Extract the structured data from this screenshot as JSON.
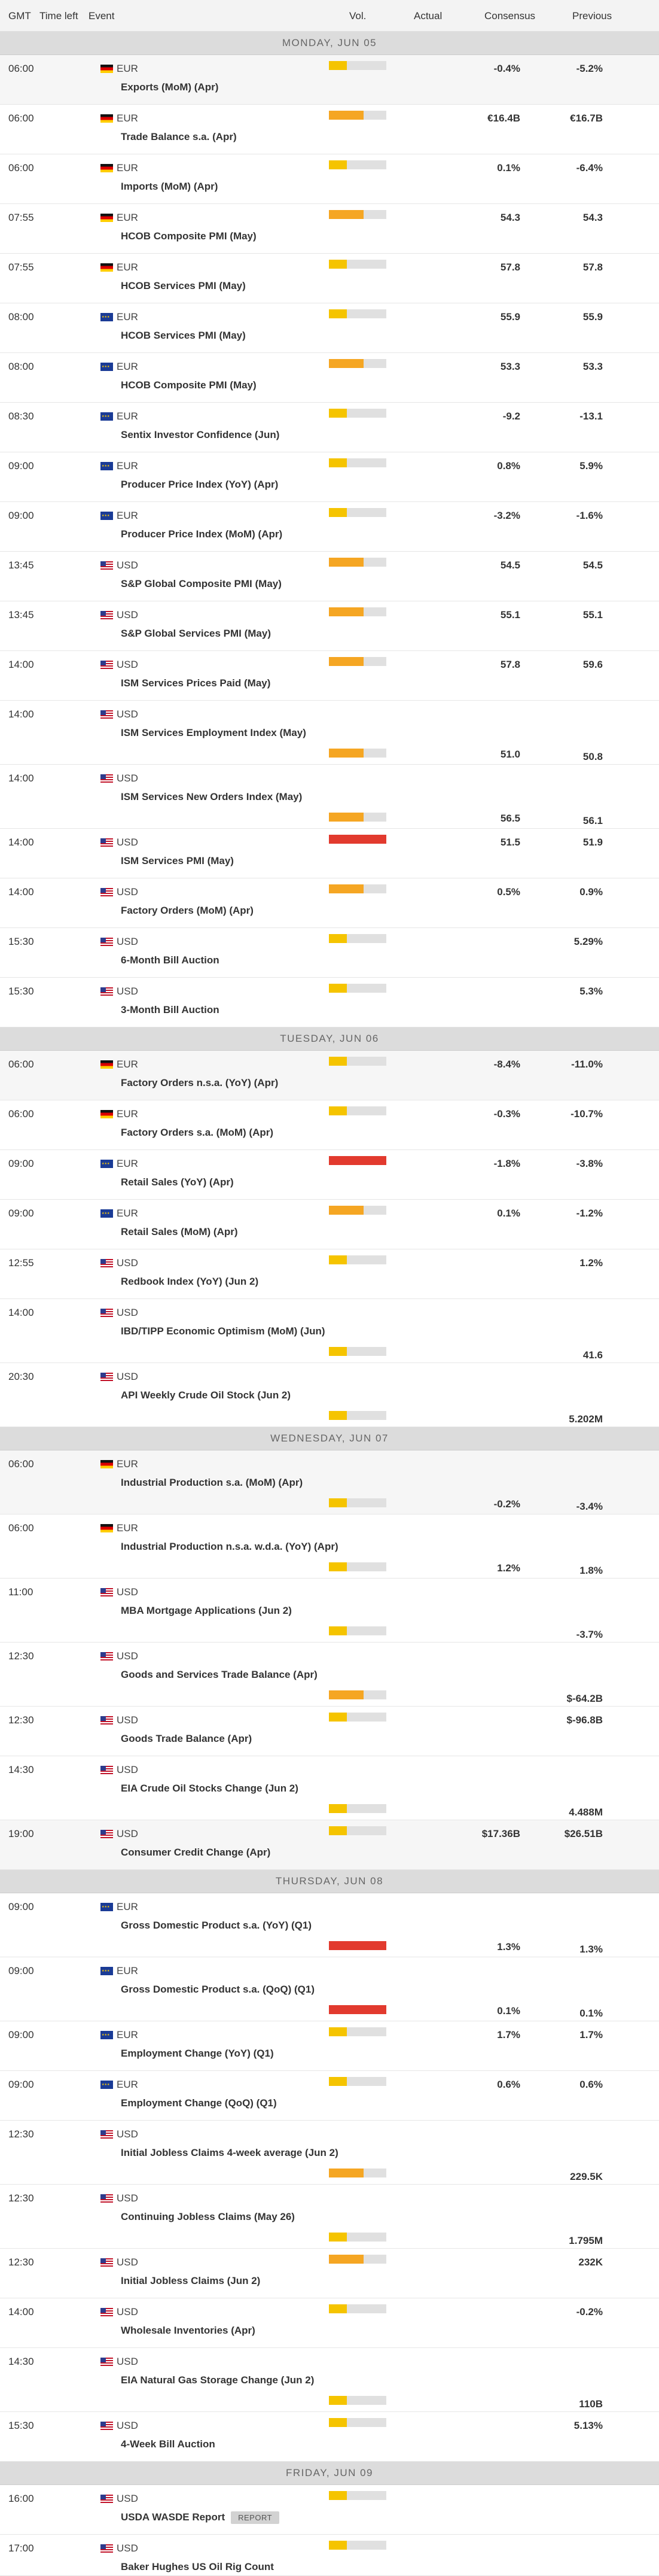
{
  "header": {
    "gmt": "GMT",
    "time_left": "Time left",
    "event": "Event",
    "vol": "Vol.",
    "actual": "Actual",
    "consensus": "Consensus",
    "previous": "Previous"
  },
  "colors": {
    "low": "#f5c400",
    "medium": "#f5a623",
    "high": "#e23a2e",
    "track": "#e0e0e0"
  },
  "days": [
    {
      "label": "MONDAY, JUN 05",
      "events": [
        {
          "time": "06:00",
          "currency": "EUR",
          "flag": "de",
          "name": "Exports (MoM) (Apr)",
          "volatility": "low",
          "actual": "",
          "consensus": "-0.4%",
          "previous": "-5.2%",
          "layout": "std",
          "h": 82,
          "alt": true
        },
        {
          "time": "06:00",
          "currency": "EUR",
          "flag": "de",
          "name": "Trade Balance s.a. (Apr)",
          "volatility": "medium",
          "actual": "",
          "consensus": "€16.4B",
          "previous": "€16.7B",
          "layout": "std",
          "h": 82
        },
        {
          "time": "06:00",
          "currency": "EUR",
          "flag": "de",
          "name": "Imports (MoM) (Apr)",
          "volatility": "low",
          "actual": "",
          "consensus": "0.1%",
          "previous": "-6.4%",
          "layout": "std",
          "h": 82
        },
        {
          "time": "07:55",
          "currency": "EUR",
          "flag": "de",
          "name": "HCOB Composite PMI (May)",
          "volatility": "medium",
          "actual": "",
          "consensus": "54.3",
          "previous": "54.3",
          "layout": "std",
          "h": 82
        },
        {
          "time": "07:55",
          "currency": "EUR",
          "flag": "de",
          "name": "HCOB Services PMI (May)",
          "volatility": "low",
          "actual": "",
          "consensus": "57.8",
          "previous": "57.8",
          "layout": "std",
          "h": 82
        },
        {
          "time": "08:00",
          "currency": "EUR",
          "flag": "eu",
          "name": "HCOB Services PMI (May)",
          "volatility": "low",
          "actual": "",
          "consensus": "55.9",
          "previous": "55.9",
          "layout": "std",
          "h": 82
        },
        {
          "time": "08:00",
          "currency": "EUR",
          "flag": "eu",
          "name": "HCOB Composite PMI (May)",
          "volatility": "medium",
          "actual": "",
          "consensus": "53.3",
          "previous": "53.3",
          "layout": "std",
          "h": 82
        },
        {
          "time": "08:30",
          "currency": "EUR",
          "flag": "eu",
          "name": "Sentix Investor Confidence (Jun)",
          "volatility": "low",
          "actual": "",
          "consensus": "-9.2",
          "previous": "-13.1",
          "layout": "std",
          "h": 82
        },
        {
          "time": "09:00",
          "currency": "EUR",
          "flag": "eu",
          "name": "Producer Price Index (YoY) (Apr)",
          "volatility": "low",
          "actual": "",
          "consensus": "0.8%",
          "previous": "5.9%",
          "layout": "std",
          "h": 82
        },
        {
          "time": "09:00",
          "currency": "EUR",
          "flag": "eu",
          "name": "Producer Price Index (MoM) (Apr)",
          "volatility": "low",
          "actual": "",
          "consensus": "-3.2%",
          "previous": "-1.6%",
          "layout": "std",
          "h": 82
        },
        {
          "time": "13:45",
          "currency": "USD",
          "flag": "us",
          "name": "S&P Global Composite PMI (May)",
          "volatility": "medium",
          "actual": "",
          "consensus": "54.5",
          "previous": "54.5",
          "layout": "std",
          "h": 82
        },
        {
          "time": "13:45",
          "currency": "USD",
          "flag": "us",
          "name": "S&P Global Services PMI (May)",
          "volatility": "medium",
          "actual": "",
          "consensus": "55.1",
          "previous": "55.1",
          "layout": "std",
          "h": 82
        },
        {
          "time": "14:00",
          "currency": "USD",
          "flag": "us",
          "name": "ISM Services Prices Paid (May)",
          "volatility": "medium",
          "actual": "",
          "consensus": "57.8",
          "previous": "59.6",
          "layout": "std",
          "h": 82
        },
        {
          "time": "14:00",
          "currency": "USD",
          "flag": "us",
          "name": "ISM Services Employment Index (May)",
          "volatility": "medium",
          "actual": "",
          "consensus": "51.0",
          "previous": "50.8",
          "layout": "long",
          "h": 106
        },
        {
          "time": "14:00",
          "currency": "USD",
          "flag": "us",
          "name": "ISM Services New Orders Index (May)",
          "volatility": "medium",
          "actual": "",
          "consensus": "56.5",
          "previous": "56.1",
          "layout": "long",
          "h": 106
        },
        {
          "time": "14:00",
          "currency": "USD",
          "flag": "us",
          "name": "ISM Services PMI (May)",
          "volatility": "high",
          "actual": "",
          "consensus": "51.5",
          "previous": "51.9",
          "layout": "std",
          "h": 82
        },
        {
          "time": "14:00",
          "currency": "USD",
          "flag": "us",
          "name": "Factory Orders (MoM) (Apr)",
          "volatility": "medium",
          "actual": "",
          "consensus": "0.5%",
          "previous": "0.9%",
          "layout": "std",
          "h": 82
        },
        {
          "time": "15:30",
          "currency": "USD",
          "flag": "us",
          "name": "6-Month Bill Auction",
          "volatility": "low",
          "actual": "",
          "consensus": "",
          "previous": "5.29%",
          "layout": "std",
          "h": 82
        },
        {
          "time": "15:30",
          "currency": "USD",
          "flag": "us",
          "name": "3-Month Bill Auction",
          "volatility": "low",
          "actual": "",
          "consensus": "",
          "previous": "5.3%",
          "layout": "std",
          "h": 82
        }
      ]
    },
    {
      "label": "TUESDAY, JUN 06",
      "events": [
        {
          "time": "06:00",
          "currency": "EUR",
          "flag": "de",
          "name": "Factory Orders n.s.a. (YoY) (Apr)",
          "volatility": "low",
          "actual": "",
          "consensus": "-8.4%",
          "previous": "-11.0%",
          "layout": "std",
          "h": 82,
          "alt": true
        },
        {
          "time": "06:00",
          "currency": "EUR",
          "flag": "de",
          "name": "Factory Orders s.a. (MoM) (Apr)",
          "volatility": "low",
          "actual": "",
          "consensus": "-0.3%",
          "previous": "-10.7%",
          "layout": "std",
          "h": 82
        },
        {
          "time": "09:00",
          "currency": "EUR",
          "flag": "eu",
          "name": "Retail Sales (YoY) (Apr)",
          "volatility": "high",
          "actual": "",
          "consensus": "-1.8%",
          "previous": "-3.8%",
          "layout": "std",
          "h": 82
        },
        {
          "time": "09:00",
          "currency": "EUR",
          "flag": "eu",
          "name": "Retail Sales (MoM) (Apr)",
          "volatility": "medium",
          "actual": "",
          "consensus": "0.1%",
          "previous": "-1.2%",
          "layout": "std",
          "h": 82
        },
        {
          "time": "12:55",
          "currency": "USD",
          "flag": "us",
          "name": "Redbook Index (YoY) (Jun 2)",
          "volatility": "low",
          "actual": "",
          "consensus": "",
          "previous": "1.2%",
          "layout": "std",
          "h": 82
        },
        {
          "time": "14:00",
          "currency": "USD",
          "flag": "us",
          "name": "IBD/TIPP Economic Optimism (MoM) (Jun)",
          "volatility": "low",
          "actual": "",
          "consensus": "",
          "previous": "41.6",
          "layout": "long",
          "h": 106
        },
        {
          "time": "20:30",
          "currency": "USD",
          "flag": "us",
          "name": "API Weekly Crude Oil Stock (Jun 2)",
          "volatility": "low",
          "actual": "",
          "consensus": "",
          "previous": "5.202M",
          "layout": "long",
          "h": 106
        }
      ]
    },
    {
      "label": "WEDNESDAY, JUN 07",
      "events": [
        {
          "time": "06:00",
          "currency": "EUR",
          "flag": "de",
          "name": "Industrial Production s.a. (MoM) (Apr)",
          "volatility": "low",
          "actual": "",
          "consensus": "-0.2%",
          "previous": "-3.4%",
          "layout": "long",
          "h": 106,
          "alt": true
        },
        {
          "time": "06:00",
          "currency": "EUR",
          "flag": "de",
          "name": "Industrial Production n.s.a. w.d.a. (YoY) (Apr)",
          "volatility": "low",
          "actual": "",
          "consensus": "1.2%",
          "previous": "1.8%",
          "layout": "long",
          "h": 106
        },
        {
          "time": "11:00",
          "currency": "USD",
          "flag": "us",
          "name": "MBA Mortgage Applications (Jun 2)",
          "volatility": "low",
          "actual": "",
          "consensus": "",
          "previous": "-3.7%",
          "layout": "long",
          "h": 106
        },
        {
          "time": "12:30",
          "currency": "USD",
          "flag": "us",
          "name": "Goods and Services Trade Balance (Apr)",
          "volatility": "medium",
          "actual": "",
          "consensus": "",
          "previous": "$-64.2B",
          "layout": "long",
          "h": 106
        },
        {
          "time": "12:30",
          "currency": "USD",
          "flag": "us",
          "name": "Goods Trade Balance (Apr)",
          "volatility": "low",
          "actual": "",
          "consensus": "",
          "previous": "$-96.8B",
          "layout": "std",
          "h": 82
        },
        {
          "time": "14:30",
          "currency": "USD",
          "flag": "us",
          "name": "EIA Crude Oil Stocks Change (Jun 2)",
          "volatility": "low",
          "actual": "",
          "consensus": "",
          "previous": "4.488M",
          "layout": "long",
          "h": 106
        },
        {
          "time": "19:00",
          "currency": "USD",
          "flag": "us",
          "name": "Consumer Credit Change (Apr)",
          "volatility": "low",
          "actual": "",
          "consensus": "$17.36B",
          "previous": "$26.51B",
          "layout": "std",
          "h": 82,
          "alt": true
        }
      ]
    },
    {
      "label": "THURSDAY, JUN 08",
      "events": [
        {
          "time": "09:00",
          "currency": "EUR",
          "flag": "eu",
          "name": "Gross Domestic Product s.a. (YoY) (Q1)",
          "volatility": "high",
          "actual": "",
          "consensus": "1.3%",
          "previous": "1.3%",
          "layout": "long",
          "h": 106
        },
        {
          "time": "09:00",
          "currency": "EUR",
          "flag": "eu",
          "name": "Gross Domestic Product s.a. (QoQ) (Q1)",
          "volatility": "high",
          "actual": "",
          "consensus": "0.1%",
          "previous": "0.1%",
          "layout": "long",
          "h": 106
        },
        {
          "time": "09:00",
          "currency": "EUR",
          "flag": "eu",
          "name": "Employment Change (YoY) (Q1)",
          "volatility": "low",
          "actual": "",
          "consensus": "1.7%",
          "previous": "1.7%",
          "layout": "std",
          "h": 82
        },
        {
          "time": "09:00",
          "currency": "EUR",
          "flag": "eu",
          "name": "Employment Change (QoQ) (Q1)",
          "volatility": "low",
          "actual": "",
          "consensus": "0.6%",
          "previous": "0.6%",
          "layout": "std",
          "h": 82
        },
        {
          "time": "12:30",
          "currency": "USD",
          "flag": "us",
          "name": "Initial Jobless Claims 4-week average (Jun 2)",
          "volatility": "medium",
          "actual": "",
          "consensus": "",
          "previous": "229.5K",
          "layout": "long",
          "h": 106
        },
        {
          "time": "12:30",
          "currency": "USD",
          "flag": "us",
          "name": "Continuing Jobless Claims (May 26)",
          "volatility": "low",
          "actual": "",
          "consensus": "",
          "previous": "1.795M",
          "layout": "long",
          "h": 106
        },
        {
          "time": "12:30",
          "currency": "USD",
          "flag": "us",
          "name": "Initial Jobless Claims (Jun 2)",
          "volatility": "medium",
          "actual": "",
          "consensus": "",
          "previous": "232K",
          "layout": "std",
          "h": 82
        },
        {
          "time": "14:00",
          "currency": "USD",
          "flag": "us",
          "name": "Wholesale Inventories (Apr)",
          "volatility": "low",
          "actual": "",
          "consensus": "",
          "previous": "-0.2%",
          "layout": "std",
          "h": 82
        },
        {
          "time": "14:30",
          "currency": "USD",
          "flag": "us",
          "name": "EIA Natural Gas Storage Change (Jun 2)",
          "volatility": "low",
          "actual": "",
          "consensus": "",
          "previous": "110B",
          "layout": "long",
          "h": 106
        },
        {
          "time": "15:30",
          "currency": "USD",
          "flag": "us",
          "name": "4-Week Bill Auction",
          "volatility": "low",
          "actual": "",
          "consensus": "",
          "previous": "5.13%",
          "layout": "std",
          "h": 82
        }
      ]
    },
    {
      "label": "FRIDAY, JUN 09",
      "events": [
        {
          "time": "16:00",
          "currency": "USD",
          "flag": "us",
          "name": "USDA WASDE Report",
          "badge": "REPORT",
          "volatility": "low",
          "actual": "",
          "consensus": "",
          "previous": "",
          "layout": "std",
          "h": 82
        },
        {
          "time": "17:00",
          "currency": "USD",
          "flag": "us",
          "name": "Baker Hughes US Oil Rig Count",
          "volatility": "low",
          "actual": "",
          "consensus": "",
          "previous": "",
          "layout": "std",
          "h": 68
        }
      ]
    }
  ]
}
